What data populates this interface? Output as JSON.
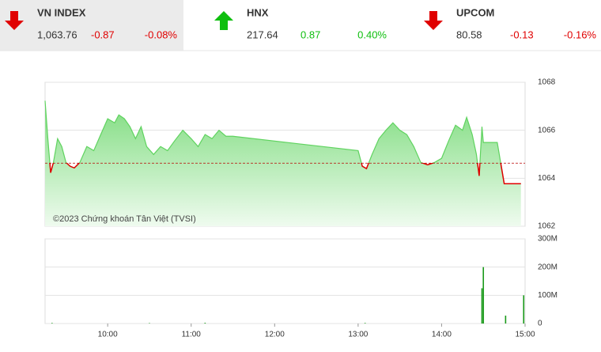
{
  "header": {
    "indices": [
      {
        "name": "VN INDEX",
        "value": "1,063.76",
        "change": "-0.87",
        "percent": "-0.08%",
        "direction": "down"
      },
      {
        "name": "HNX",
        "value": "217.64",
        "change": "0.87",
        "percent": "0.40%",
        "direction": "up"
      },
      {
        "name": "UPCOM",
        "value": "80.58",
        "change": "-0.13",
        "percent": "-0.16%",
        "direction": "down"
      }
    ]
  },
  "chart_data": [
    {
      "type": "line",
      "note": "©2023 Chứng khoán Tân Việt (TVSI)",
      "reference": 1064.63,
      "up_color": "#5fd35f",
      "down_color": "#e00000",
      "x": [
        "09:15",
        "09:17",
        "09:19",
        "09:21",
        "09:24",
        "09:27",
        "09:30",
        "09:33",
        "09:36",
        "09:40",
        "09:45",
        "09:50",
        "09:55",
        "10:00",
        "10:05",
        "10:08",
        "10:12",
        "10:16",
        "10:20",
        "10:24",
        "10:28",
        "10:33",
        "10:38",
        "10:43",
        "10:48",
        "10:54",
        "11:00",
        "11:05",
        "11:10",
        "11:15",
        "11:20",
        "11:25",
        "11:30",
        "13:00",
        "13:03",
        "13:06",
        "13:10",
        "13:15",
        "13:20",
        "13:25",
        "13:30",
        "13:35",
        "13:40",
        "13:45",
        "13:50",
        "13:55",
        "14:00",
        "14:05",
        "14:10",
        "14:15",
        "14:18",
        "14:22",
        "14:25",
        "14:27",
        "14:29",
        "14:30",
        "14:40",
        "14:45",
        "14:57"
      ],
      "values": [
        1067.23,
        1065.65,
        1064.23,
        1064.66,
        1065.65,
        1065.32,
        1064.66,
        1064.5,
        1064.43,
        1064.66,
        1065.32,
        1065.15,
        1065.82,
        1066.48,
        1066.31,
        1066.64,
        1066.48,
        1066.15,
        1065.65,
        1066.15,
        1065.32,
        1064.99,
        1065.32,
        1065.15,
        1065.55,
        1066.0,
        1065.65,
        1065.32,
        1065.82,
        1065.65,
        1066.0,
        1065.75,
        1065.75,
        1065.15,
        1064.5,
        1064.4,
        1064.99,
        1065.65,
        1066.0,
        1066.31,
        1066.0,
        1065.82,
        1065.32,
        1064.66,
        1064.56,
        1064.66,
        1064.83,
        1065.55,
        1066.21,
        1066.0,
        1066.54,
        1065.82,
        1065.0,
        1064.1,
        1066.15,
        1065.49,
        1065.49,
        1063.77,
        1063.77
      ],
      "xlim": [
        "09:15",
        "15:00"
      ],
      "ylim": [
        1062,
        1068
      ],
      "yticks": [
        1062,
        1064,
        1066,
        1068
      ]
    },
    {
      "type": "bar",
      "color": "#1a9a1a",
      "x": [
        "09:20",
        "10:30",
        "11:10",
        "13:05",
        "14:29",
        "14:30",
        "14:46",
        "14:59"
      ],
      "values": [
        2000000,
        1500000,
        2500000,
        2000000,
        125000000,
        200000000,
        28000000,
        100000000
      ],
      "xlim": [
        "09:15",
        "15:00"
      ],
      "ylim": [
        0,
        300000000
      ],
      "yticks": [
        0,
        {
          "value": 100000000,
          "label": "100M"
        },
        {
          "value": 200000000,
          "label": "200M"
        },
        {
          "value": 300000000,
          "label": "300M"
        }
      ],
      "xticks": [
        "10:00",
        "11:00",
        "12:00",
        "13:00",
        "14:00",
        "15:00"
      ]
    }
  ]
}
